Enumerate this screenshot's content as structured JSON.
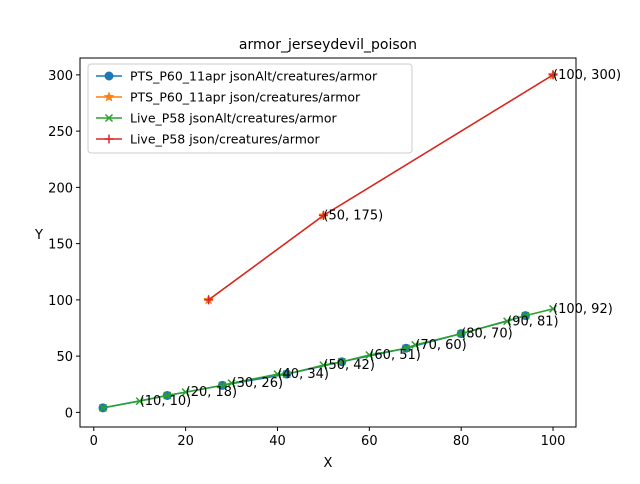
{
  "chart_data": {
    "type": "line",
    "title": "armor_jerseydevil_poison",
    "xlabel": "X",
    "ylabel": "Y",
    "xlim": [
      -3,
      105
    ],
    "ylim": [
      -13,
      315
    ],
    "xticks": [
      0,
      20,
      40,
      60,
      80,
      100
    ],
    "yticks": [
      0,
      50,
      100,
      150,
      200,
      250,
      300
    ],
    "legend_position": "top-left",
    "grid": false,
    "series": [
      {
        "name": "PTS_P60_11apr jsonAlt/creatures/armor",
        "color": "#1f77b4",
        "marker": "circle",
        "x": [
          2,
          16,
          28,
          42,
          54,
          68,
          80,
          94
        ],
        "y": [
          4,
          15,
          24,
          34,
          45,
          57,
          70,
          86
        ]
      },
      {
        "name": "PTS_P60_11apr json/creatures/armor",
        "color": "#ff7f0e",
        "marker": "star",
        "x": [
          25,
          50,
          100
        ],
        "y": [
          100,
          175,
          300
        ]
      },
      {
        "name": "Live_P58 jsonAlt/creatures/armor",
        "color": "#2ca02c",
        "marker": "x",
        "x": [
          2,
          10,
          16,
          20,
          28,
          30,
          40,
          42,
          50,
          54,
          60,
          68,
          70,
          80,
          90,
          94,
          100
        ],
        "y": [
          4,
          10,
          15,
          18,
          24,
          26,
          34,
          34,
          42,
          45,
          51,
          57,
          60,
          70,
          81,
          86,
          92
        ]
      },
      {
        "name": "Live_P58 json/creatures/armor",
        "color": "#d62728",
        "marker": "plus",
        "x": [
          25,
          50,
          100
        ],
        "y": [
          100,
          175,
          300
        ]
      }
    ],
    "annotations": [
      {
        "x": 10,
        "y": 10,
        "text": "(10, 10)"
      },
      {
        "x": 20,
        "y": 18,
        "text": "(20, 18)"
      },
      {
        "x": 30,
        "y": 26,
        "text": "(30, 26)"
      },
      {
        "x": 40,
        "y": 34,
        "text": "(40, 34)"
      },
      {
        "x": 50,
        "y": 42,
        "text": "(50, 42)"
      },
      {
        "x": 60,
        "y": 51,
        "text": "(60, 51)"
      },
      {
        "x": 70,
        "y": 60,
        "text": "(70, 60)"
      },
      {
        "x": 80,
        "y": 70,
        "text": "(80, 70)"
      },
      {
        "x": 90,
        "y": 81,
        "text": "(90, 81)"
      },
      {
        "x": 100,
        "y": 92,
        "text": "(100, 92)"
      },
      {
        "x": 50,
        "y": 175,
        "text": "(50, 175)"
      },
      {
        "x": 100,
        "y": 300,
        "text": "(100, 300)"
      }
    ]
  }
}
